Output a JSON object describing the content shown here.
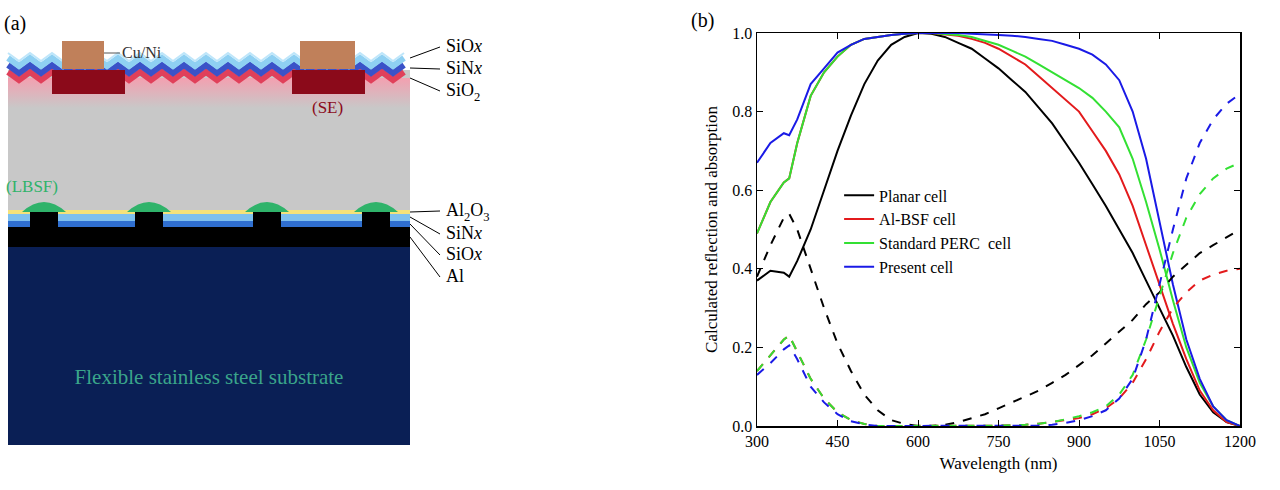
{
  "diagram": {
    "panel_label": "(a)",
    "labels": {
      "finger": "Cu/Ni",
      "front_layers": [
        "SiOx",
        "SiNx",
        "SiO2"
      ],
      "selective_emitter": "(SE)",
      "local_bsf": "(LBSF)",
      "rear_layers": [
        "Al2O3",
        "SiNx",
        "SiOx",
        "Al"
      ],
      "substrate": "Flexible stainless steel substrate"
    }
  },
  "chart_data": {
    "type": "line",
    "annotations": [
      {
        "text": "(b)"
      }
    ],
    "xlabel": "Wavelength (nm)",
    "ylabel": "Calculated reflection and absorption",
    "xlim": [
      300,
      1200
    ],
    "xticks": [
      300,
      450,
      600,
      750,
      900,
      1050,
      1200
    ],
    "ylim": [
      0,
      1
    ],
    "yticks": [
      {
        "value": 0,
        "label": "0.0"
      },
      0.2,
      0.4,
      0.6,
      0.8,
      {
        "value": 1,
        "label": "1.0"
      }
    ],
    "grid": false,
    "legend": "left",
    "x": [
      300,
      325,
      350,
      360,
      375,
      400,
      425,
      450,
      475,
      500,
      525,
      550,
      575,
      600,
      625,
      650,
      675,
      700,
      725,
      750,
      775,
      800,
      825,
      850,
      875,
      900,
      925,
      950,
      975,
      1000,
      1025,
      1050,
      1075,
      1100,
      1125,
      1150,
      1175,
      1200
    ],
    "series": [
      {
        "name": "Planar cell",
        "color": "#000000",
        "line_style": "solid",
        "values": [
          0.37,
          0.395,
          0.39,
          0.38,
          0.42,
          0.5,
          0.6,
          0.7,
          0.79,
          0.87,
          0.93,
          0.97,
          0.99,
          1.0,
          0.998,
          0.99,
          0.975,
          0.96,
          0.935,
          0.91,
          0.88,
          0.85,
          0.81,
          0.77,
          0.72,
          0.67,
          0.615,
          0.56,
          0.5,
          0.44,
          0.37,
          0.3,
          0.23,
          0.15,
          0.08,
          0.035,
          0.01,
          0
        ]
      },
      {
        "name": "Al-BSF cell",
        "color": "#e31a1c",
        "line_style": "solid",
        "values": [
          0.49,
          0.57,
          0.62,
          0.63,
          0.72,
          0.84,
          0.9,
          0.94,
          0.97,
          0.985,
          0.99,
          0.995,
          0.998,
          1.0,
          1.0,
          0.997,
          0.993,
          0.985,
          0.975,
          0.96,
          0.94,
          0.92,
          0.89,
          0.86,
          0.83,
          0.8,
          0.75,
          0.7,
          0.64,
          0.56,
          0.46,
          0.36,
          0.26,
          0.17,
          0.09,
          0.04,
          0.01,
          0
        ]
      },
      {
        "name": "Standard PERC  cell",
        "color": "#33e033",
        "line_style": "solid",
        "values": [
          0.49,
          0.57,
          0.62,
          0.63,
          0.72,
          0.84,
          0.9,
          0.94,
          0.97,
          0.985,
          0.99,
          0.995,
          0.998,
          1.0,
          1.0,
          0.998,
          0.995,
          0.99,
          0.98,
          0.97,
          0.955,
          0.94,
          0.92,
          0.9,
          0.88,
          0.86,
          0.835,
          0.8,
          0.76,
          0.68,
          0.57,
          0.45,
          0.32,
          0.2,
          0.11,
          0.05,
          0.015,
          0
        ]
      },
      {
        "name": "Present cell",
        "color": "#1a1ae6",
        "line_style": "solid",
        "values": [
          0.67,
          0.72,
          0.745,
          0.74,
          0.78,
          0.87,
          0.91,
          0.95,
          0.97,
          0.985,
          0.99,
          0.995,
          0.998,
          1.0,
          1.0,
          1.0,
          1.0,
          0.998,
          0.997,
          0.995,
          0.993,
          0.99,
          0.985,
          0.98,
          0.97,
          0.96,
          0.945,
          0.92,
          0.88,
          0.8,
          0.68,
          0.52,
          0.36,
          0.22,
          0.12,
          0.05,
          0.015,
          0
        ]
      },
      {
        "color": "#000000",
        "line_style": "dashed",
        "values": [
          0.38,
          0.46,
          0.53,
          0.54,
          0.5,
          0.4,
          0.3,
          0.21,
          0.14,
          0.08,
          0.04,
          0.015,
          0.005,
          0,
          0,
          0.003,
          0.01,
          0.02,
          0.03,
          0.045,
          0.06,
          0.075,
          0.09,
          0.11,
          0.13,
          0.155,
          0.18,
          0.21,
          0.24,
          0.27,
          0.31,
          0.34,
          0.38,
          0.41,
          0.44,
          0.46,
          0.48,
          0.5
        ]
      },
      {
        "color": "#e31a1c",
        "line_style": "dashed",
        "values": [
          0.14,
          0.18,
          0.22,
          0.23,
          0.19,
          0.12,
          0.07,
          0.035,
          0.015,
          0.005,
          0,
          0,
          0,
          0,
          0,
          0,
          0,
          0,
          0,
          0.001,
          0.002,
          0.003,
          0.006,
          0.01,
          0.015,
          0.02,
          0.03,
          0.045,
          0.07,
          0.11,
          0.17,
          0.24,
          0.3,
          0.34,
          0.37,
          0.385,
          0.395,
          0.4
        ]
      },
      {
        "color": "#33e033",
        "line_style": "dashed",
        "values": [
          0.14,
          0.18,
          0.22,
          0.23,
          0.19,
          0.12,
          0.07,
          0.035,
          0.015,
          0.005,
          0,
          0,
          0,
          0,
          0,
          0,
          0,
          0,
          0,
          0.001,
          0.002,
          0.003,
          0.006,
          0.01,
          0.017,
          0.025,
          0.035,
          0.05,
          0.08,
          0.13,
          0.22,
          0.33,
          0.44,
          0.53,
          0.59,
          0.63,
          0.655,
          0.67
        ]
      },
      {
        "color": "#1a1ae6",
        "line_style": "dashed",
        "values": [
          0.13,
          0.16,
          0.195,
          0.205,
          0.17,
          0.1,
          0.06,
          0.03,
          0.012,
          0.004,
          0,
          0,
          0,
          0,
          0,
          0,
          0,
          0,
          0,
          0,
          0,
          0,
          0.001,
          0.003,
          0.008,
          0.015,
          0.025,
          0.04,
          0.07,
          0.12,
          0.22,
          0.36,
          0.5,
          0.63,
          0.72,
          0.78,
          0.82,
          0.845
        ]
      }
    ]
  }
}
